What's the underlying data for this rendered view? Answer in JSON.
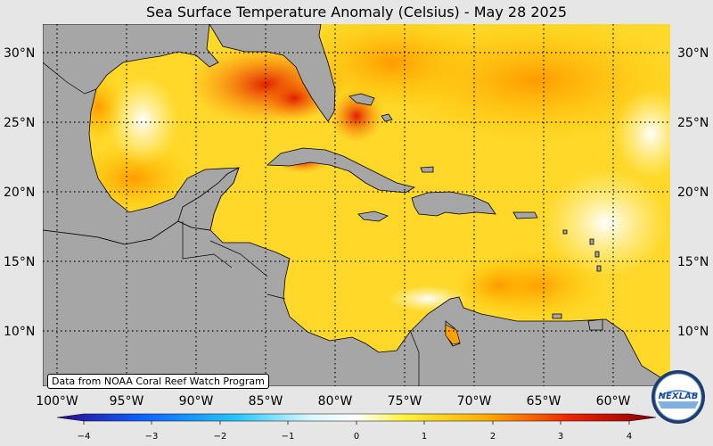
{
  "title": "Sea Surface Temperature Anomaly (Celsius) - May 28 2025",
  "credit": "Data from NOAA Coral Reef Watch Program",
  "logo_text": "NEXLAB",
  "latitude_labels": [
    "30°N",
    "25°N",
    "20°N",
    "15°N",
    "10°N"
  ],
  "longitude_labels": [
    "100°W",
    "95°W",
    "90°W",
    "85°W",
    "80°W",
    "75°W",
    "70°W",
    "65°W",
    "60°W"
  ],
  "colorbar": {
    "ticks": [
      "−4",
      "−3",
      "−2",
      "−1",
      "0",
      "1",
      "2",
      "3",
      "4"
    ],
    "colors": [
      "#2a0a8a",
      "#1060ff",
      "#22c8ff",
      "#ffffff",
      "#fff23a",
      "#ffaa00",
      "#ee2200",
      "#8a0000"
    ]
  },
  "colors": {
    "land": "#a6a6a6",
    "ocean_warm_light": "#ffe94a",
    "ocean_warm": "#ffb000",
    "ocean_hot": "#f03a00",
    "ocean_cool": "#ffffff"
  }
}
